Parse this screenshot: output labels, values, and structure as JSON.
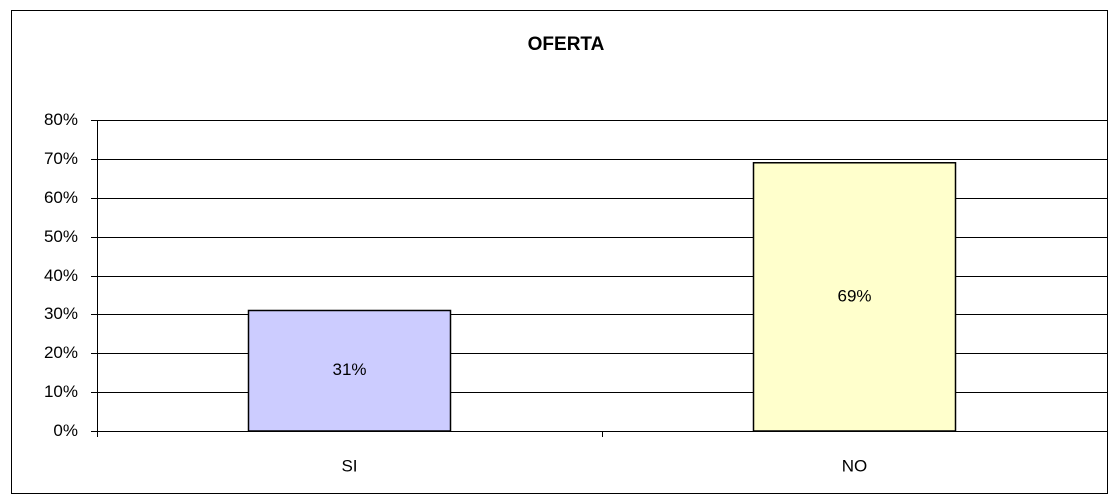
{
  "chart_data": {
    "type": "bar",
    "title": "OFERTA",
    "categories": [
      "SI",
      "NO"
    ],
    "values": [
      31,
      69
    ],
    "value_labels": [
      "31%",
      "69%"
    ],
    "colors": [
      "#ccccff",
      "#ffffcc"
    ],
    "ylim": [
      0,
      80
    ],
    "yticks": [
      {
        "value": 0,
        "label": "0%"
      },
      {
        "value": 10,
        "label": "10%"
      },
      {
        "value": 20,
        "label": "20%"
      },
      {
        "value": 30,
        "label": "30%"
      },
      {
        "value": 40,
        "label": "40%"
      },
      {
        "value": 50,
        "label": "50%"
      },
      {
        "value": 60,
        "label": "60%"
      },
      {
        "value": 70,
        "label": "70%"
      },
      {
        "value": 80,
        "label": "80%"
      }
    ],
    "grid": true
  }
}
